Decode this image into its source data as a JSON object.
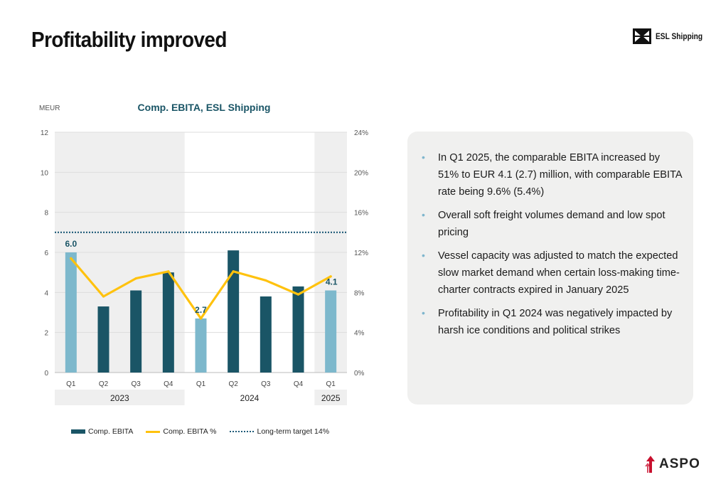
{
  "slide": {
    "title": "Profitability improved",
    "brand": "ESL Shipping",
    "footer_logo": "ASPO",
    "bullets": [
      "In Q1 2025, the comparable EBITA increased by 51% to EUR 4.1 (2.7) million, with comparable EBITA rate being 9.6% (5.4%)",
      "Overall soft freight volumes demand and low spot pricing",
      "Vessel capacity was adjusted to match the expected slow market demand when certain loss-making time-charter contracts expired in January 2025",
      "Profitability in Q1 2024 was negatively impacted by harsh ice conditions and political strikes"
    ],
    "bullet_icon": "bullet-dot",
    "legend": {
      "bar": "Comp. EBITA",
      "line": "Comp. EBITA %",
      "target": "Long-term target 14%"
    }
  },
  "chart_data": {
    "type": "bar",
    "title": "Comp. EBITA, ESL Shipping",
    "ylabel": "MEUR",
    "categories": [
      "Q1",
      "Q2",
      "Q3",
      "Q4",
      "Q1",
      "Q2",
      "Q3",
      "Q4",
      "Q1"
    ],
    "year_groups": [
      {
        "label": "2023",
        "start": 0,
        "end": 3
      },
      {
        "label": "2024",
        "start": 4,
        "end": 7
      },
      {
        "label": "2025",
        "start": 8,
        "end": 8
      }
    ],
    "series": [
      {
        "name": "Comp. EBITA",
        "type": "bar",
        "axis": "left",
        "values": [
          6.0,
          3.3,
          4.1,
          5.0,
          2.7,
          6.1,
          3.8,
          4.3,
          4.1
        ],
        "highlight_indices": [
          0,
          4,
          8
        ],
        "data_labels": {
          "0": "6.0",
          "4": "2.7",
          "8": "4.1"
        }
      },
      {
        "name": "Comp. EBITA %",
        "type": "line",
        "axis": "right",
        "values": [
          11.4,
          7.6,
          9.4,
          10.1,
          5.4,
          10.1,
          9.2,
          7.8,
          9.6
        ]
      }
    ],
    "reference_line": {
      "name": "Long-term target 14%",
      "axis": "right",
      "value": 14
    },
    "ylim": [
      0,
      12
    ],
    "yticks": [
      "0",
      "2",
      "4",
      "6",
      "8",
      "10",
      "12"
    ],
    "y2lim": [
      0,
      24
    ],
    "y2ticks": [
      "0%",
      "4%",
      "8%",
      "12%",
      "16%",
      "20%",
      "24%"
    ],
    "shaded_groups": [
      "2023",
      "2025"
    ],
    "grid": true,
    "legend_position": "bottom",
    "colors": {
      "bar": "#1a5566",
      "bar_highlight": "#7db8cc",
      "line": "#ffc20e",
      "target": "#1e5a78",
      "shade": "#efefef",
      "label": "#1a5566"
    }
  }
}
